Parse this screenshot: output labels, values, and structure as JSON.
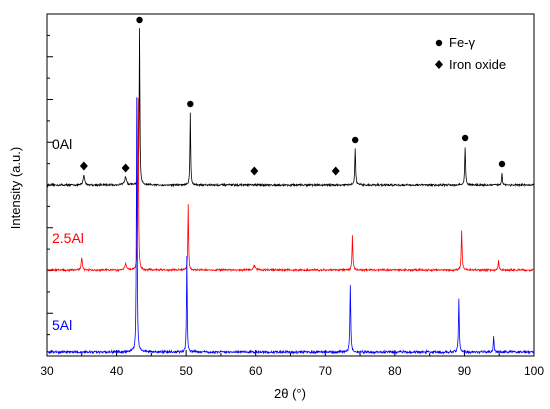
{
  "chart_data": {
    "type": "line",
    "xlabel": "2θ (°)",
    "ylabel": "Intensity (a.u.)",
    "xlim": [
      30,
      100
    ],
    "xticks": [
      30,
      40,
      50,
      60,
      70,
      80,
      90,
      100
    ],
    "y_ticks_labeled": false,
    "grid": false,
    "legend": {
      "placement": "top-right",
      "entries": [
        {
          "marker": "circle",
          "label": "Fe-γ"
        },
        {
          "marker": "diamond",
          "label": "Iron oxide"
        }
      ]
    },
    "series": [
      {
        "name": "0Al",
        "color": "#000000",
        "baseline": 0,
        "noise": 0.006,
        "peaks": [
          {
            "x": 35.3,
            "h": 0.05,
            "w": 0.25
          },
          {
            "x": 41.3,
            "h": 0.04,
            "w": 0.35
          },
          {
            "x": 43.3,
            "h": 0.78,
            "w": 0.12
          },
          {
            "x": 50.6,
            "h": 0.36,
            "w": 0.12
          },
          {
            "x": 74.3,
            "h": 0.18,
            "w": 0.14
          },
          {
            "x": 90.1,
            "h": 0.19,
            "w": 0.14
          },
          {
            "x": 95.4,
            "h": 0.06,
            "w": 0.14
          }
        ]
      },
      {
        "name": "2.5Al",
        "color": "#ff0000",
        "baseline": -0.42,
        "noise": 0.006,
        "peaks": [
          {
            "x": 35.0,
            "h": 0.06,
            "w": 0.2
          },
          {
            "x": 41.3,
            "h": 0.03,
            "w": 0.3
          },
          {
            "x": 43.1,
            "h": 0.86,
            "w": 0.12
          },
          {
            "x": 50.3,
            "h": 0.33,
            "w": 0.12
          },
          {
            "x": 59.8,
            "h": 0.02,
            "w": 0.4
          },
          {
            "x": 73.9,
            "h": 0.17,
            "w": 0.14
          },
          {
            "x": 89.6,
            "h": 0.2,
            "w": 0.14
          },
          {
            "x": 94.9,
            "h": 0.05,
            "w": 0.14
          }
        ]
      },
      {
        "name": "5Al",
        "color": "#0000ff",
        "baseline": -0.82,
        "noise": 0.006,
        "peaks": [
          {
            "x": 42.9,
            "h": 0.98,
            "w": 0.12
          },
          {
            "x": 50.1,
            "h": 0.37,
            "w": 0.12
          },
          {
            "x": 73.6,
            "h": 0.26,
            "w": 0.14
          },
          {
            "x": 89.2,
            "h": 0.2,
            "w": 0.14
          },
          {
            "x": 94.2,
            "h": 0.06,
            "w": 0.14
          }
        ]
      }
    ],
    "annotations": [
      {
        "marker": "circle",
        "x": 43.3,
        "series": "0Al"
      },
      {
        "marker": "circle",
        "x": 50.6,
        "series": "0Al"
      },
      {
        "marker": "circle",
        "x": 74.3,
        "series": "0Al"
      },
      {
        "marker": "circle",
        "x": 90.1,
        "series": "0Al"
      },
      {
        "marker": "circle",
        "x": 95.4,
        "series": "0Al"
      },
      {
        "marker": "diamond",
        "x": 35.3,
        "series": "0Al"
      },
      {
        "marker": "diamond",
        "x": 41.3,
        "series": "0Al"
      },
      {
        "marker": "diamond",
        "x": 59.8,
        "series": "0Al"
      },
      {
        "marker": "diamond",
        "x": 71.5,
        "series": "0Al"
      }
    ]
  }
}
